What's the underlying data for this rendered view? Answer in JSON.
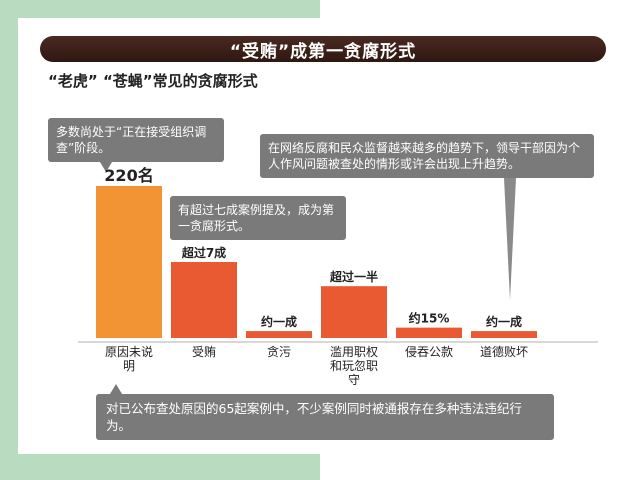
{
  "banner": "“受贿”成第一贪腐形式",
  "subtitle": "“老虎” “苍蝇”常见的贪腐形式",
  "notes": {
    "n1": "多数尚处于“正在接受组织调查”阶段。",
    "n2": "有超过七成案例提及，成为第一贪腐形式。",
    "n3": "在网络反腐和民众监督越来越多的趋势下，领导干部因为个人作风问题被查处的情形或许会出现上升趋势。",
    "footer": "对已公布查处原因的65起案例中，不少案例同时被通报存在多种违法违纪行为。"
  },
  "chart_data": {
    "type": "bar",
    "title": "“受贿”成第一贪腐形式",
    "subtitle": "“老虎” “苍蝇”常见的贪腐形式",
    "categories": [
      "原因未说明",
      "受贿",
      "贪污",
      "滥用职权和玩忽职守",
      "侵吞公款",
      "道德败坏"
    ],
    "values": [
      220,
      110,
      10,
      75,
      15,
      10
    ],
    "bar_labels": [
      "220名",
      "超过7成",
      "约一成",
      "超过一半",
      "约15%",
      "约一成"
    ],
    "colors": [
      "#f39434",
      "#e95a33",
      "#e95a33",
      "#e95a33",
      "#e95a33",
      "#e95a33"
    ],
    "ylim": [
      0,
      220
    ],
    "grid": false,
    "legend": "none"
  }
}
